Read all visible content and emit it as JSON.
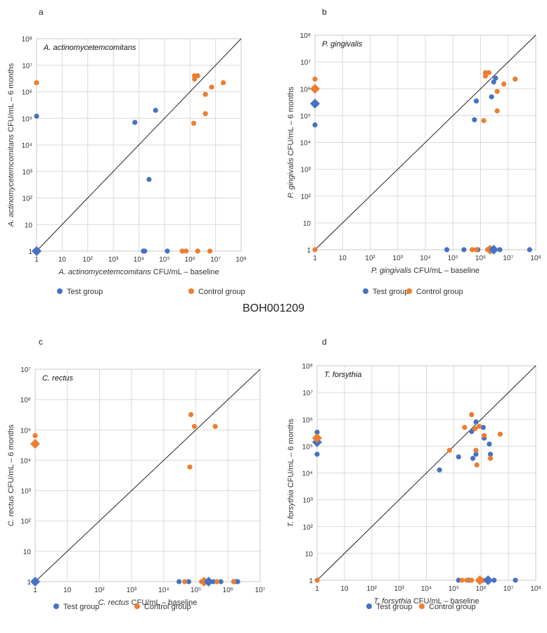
{
  "figure_label": "BOH001209",
  "legend": {
    "test_label": "Test group",
    "control_label": "Control group"
  },
  "colors": {
    "test": "#4472C4",
    "control": "#ED7D31",
    "grid": "#d9d9d9",
    "diagonal": "#222222"
  },
  "chart_data": [
    {
      "panel": "a",
      "type": "scatter",
      "title": "A. actinomycetemcomitans",
      "xlabel_italic": "A. actinomycetemcomitans",
      "xlabel_rest": " CFU/mL – baseline",
      "ylabel_italic": "A. actinomycetemcomitans",
      "ylabel_rest": " CFU/mL – 6 months",
      "ymax_exp": 8,
      "x_ticks": [
        "1",
        "10",
        "10²",
        "10³",
        "10⁴",
        "10⁵",
        "10⁶",
        "10⁷",
        "10⁸"
      ],
      "y_ticks": [
        "1",
        "10",
        "10²",
        "10³",
        "10⁴",
        "10⁵",
        "10⁶",
        "10⁷",
        "10⁸"
      ],
      "series": [
        {
          "name": "Test group",
          "points": [
            [
              1,
              120000
            ],
            [
              7000,
              70000
            ],
            [
              45000,
              200000
            ],
            [
              25000,
              500
            ],
            [
              15000,
              1
            ],
            [
              17000,
              1
            ],
            [
              130000,
              1
            ]
          ]
        },
        {
          "name": "Control group",
          "points": [
            [
              1,
              2200000
            ],
            [
              1500000,
              4000000
            ],
            [
              1500000,
              3000000
            ],
            [
              2000000,
              4000000
            ],
            [
              4000000,
              800000
            ],
            [
              4000000,
              150000
            ],
            [
              7000000,
              1500000
            ],
            [
              20000000,
              2200000
            ],
            [
              1400000,
              65000
            ],
            [
              500000,
              1
            ],
            [
              700000,
              1
            ],
            [
              2000000,
              1
            ],
            [
              6000000,
              1
            ]
          ]
        }
      ],
      "medians": {
        "test": [
          1,
          1
        ],
        "control": [
          1,
          1
        ]
      }
    },
    {
      "panel": "b",
      "type": "scatter",
      "title": "P. gingivalis",
      "xlabel_italic": "P. gingivalis",
      "xlabel_rest": " CFU/mL – baseline",
      "ylabel_italic": "P. gingivalis",
      "ylabel_rest": " CFU/mL – 6 months",
      "ymax_exp": 8,
      "x_ticks": [
        "1",
        "10",
        "10²",
        "10³",
        "10⁴",
        "10⁵",
        "10⁶",
        "10⁷",
        "10⁸"
      ],
      "y_ticks": [
        "1",
        "10",
        "10²",
        "10³",
        "10⁴",
        "10⁵",
        "10⁶",
        "10⁷",
        "10⁸"
      ],
      "series": [
        {
          "name": "Test group",
          "points": [
            [
              1,
              45000
            ],
            [
              700000,
              350000
            ],
            [
              600000,
              70000
            ],
            [
              2500000,
              500000
            ],
            [
              3000000,
              1800000
            ],
            [
              3500000,
              2500000
            ],
            [
              60000,
              1
            ],
            [
              250000,
              1
            ],
            [
              800000,
              1
            ],
            [
              3000000,
              1
            ],
            [
              5000000,
              1
            ],
            [
              60000000,
              1
            ]
          ]
        },
        {
          "name": "Control group",
          "points": [
            [
              1,
              2300000
            ],
            [
              1500000,
              4000000
            ],
            [
              1500000,
              3000000
            ],
            [
              2000000,
              4000000
            ],
            [
              4000000,
              800000
            ],
            [
              4000000,
              150000
            ],
            [
              7000000,
              1500000
            ],
            [
              18000000,
              2300000
            ],
            [
              1300000,
              65000
            ],
            [
              1,
              1
            ],
            [
              500000,
              1
            ],
            [
              700000,
              1
            ],
            [
              1800000,
              1
            ],
            [
              2200000,
              1
            ]
          ]
        }
      ],
      "medians": {
        "test": [
          3000000,
          1
        ],
        "control": [
          2200000,
          1
        ],
        "test_at_zero": [
          1,
          280000
        ],
        "control_at_zero": [
          1,
          1000000
        ]
      }
    },
    {
      "panel": "c",
      "type": "scatter",
      "title": "C. rectus",
      "xlabel_italic": "C. rectus",
      "xlabel_rest": " CFU/mL – baseline",
      "ylabel_italic": "C. rectus",
      "ylabel_rest": " CFU/mL – 6 months",
      "ymax_exp": 7,
      "x_ticks": [
        "1",
        "10",
        "10²",
        "10³",
        "10⁴",
        "10⁵",
        "10⁶",
        "10⁷"
      ],
      "y_ticks": [
        "1",
        "10",
        "10²",
        "10³",
        "10⁴",
        "10⁵",
        "10⁶",
        "10⁷"
      ],
      "series": [
        {
          "name": "Test group",
          "points": [
            [
              30000,
              1
            ],
            [
              60000,
              1
            ],
            [
              200000,
              1
            ],
            [
              350000,
              1
            ],
            [
              600000,
              1
            ],
            [
              1500000,
              1
            ],
            [
              1800000,
              1
            ],
            [
              2000000,
              1
            ]
          ]
        },
        {
          "name": "Control group",
          "points": [
            [
              1,
              65000
            ],
            [
              70000,
              320000
            ],
            [
              90000,
              130000
            ],
            [
              400000,
              130000
            ],
            [
              65000,
              6000
            ],
            [
              45000,
              1
            ],
            [
              150000,
              1
            ],
            [
              250000,
              1
            ],
            [
              450000,
              1
            ],
            [
              1500000,
              1
            ]
          ]
        }
      ],
      "medians": {
        "test": [
          1,
          1
        ],
        "control": [
          1,
          35000
        ],
        "test_right": [
          250000,
          1
        ],
        "control_right": [
          180000,
          1
        ]
      }
    },
    {
      "panel": "d",
      "type": "scatter",
      "title": "T. forsythia",
      "xlabel_italic": "T. forsythia",
      "xlabel_rest": " CFU/mL – baseline",
      "ylabel_italic": "T. forsythia",
      "ylabel_rest": " CFU/mL – 6 months",
      "ymax_exp": 8,
      "x_ticks": [
        "1",
        "10",
        "10²",
        "10³",
        "10⁴",
        "10⁵",
        "10⁶",
        "10⁷",
        "10⁸"
      ],
      "y_ticks": [
        "1",
        "10",
        "10²",
        "10³",
        "10⁴",
        "10⁵",
        "10⁶",
        "10⁷",
        "10⁸"
      ],
      "series": [
        {
          "name": "Test group",
          "points": [
            [
              1,
              330000
            ],
            [
              1,
              50000
            ],
            [
              30000,
              13000
            ],
            [
              150000,
              40000
            ],
            [
              450000,
              350000
            ],
            [
              650000,
              800000
            ],
            [
              1200000,
              500000
            ],
            [
              1300000,
              200000
            ],
            [
              2000000,
              120000
            ],
            [
              2200000,
              50000
            ],
            [
              500000,
              35000
            ],
            [
              650000,
              50000
            ],
            [
              150000,
              1
            ],
            [
              350000,
              1
            ],
            [
              1000000,
              1
            ],
            [
              3000000,
              1
            ],
            [
              18000000,
              1
            ]
          ]
        },
        {
          "name": "Control group",
          "points": [
            [
              250000,
              500000
            ],
            [
              450000,
              1500000
            ],
            [
              600000,
              450000
            ],
            [
              850000,
              550000
            ],
            [
              1300000,
              250000
            ],
            [
              5000000,
              280000
            ],
            [
              70000,
              70000
            ],
            [
              650000,
              70000
            ],
            [
              700000,
              20000
            ],
            [
              2200000,
              35000
            ],
            [
              1,
              1
            ],
            [
              200000,
              1
            ],
            [
              300000,
              1
            ],
            [
              450000,
              1
            ],
            [
              1200000,
              1
            ]
          ]
        }
      ],
      "medians": {
        "test": [
          1800000,
          1
        ],
        "control": [
          900000,
          1
        ],
        "test_at_zero": [
          1,
          140000
        ],
        "control_at_zero": [
          1,
          200000
        ]
      }
    }
  ]
}
